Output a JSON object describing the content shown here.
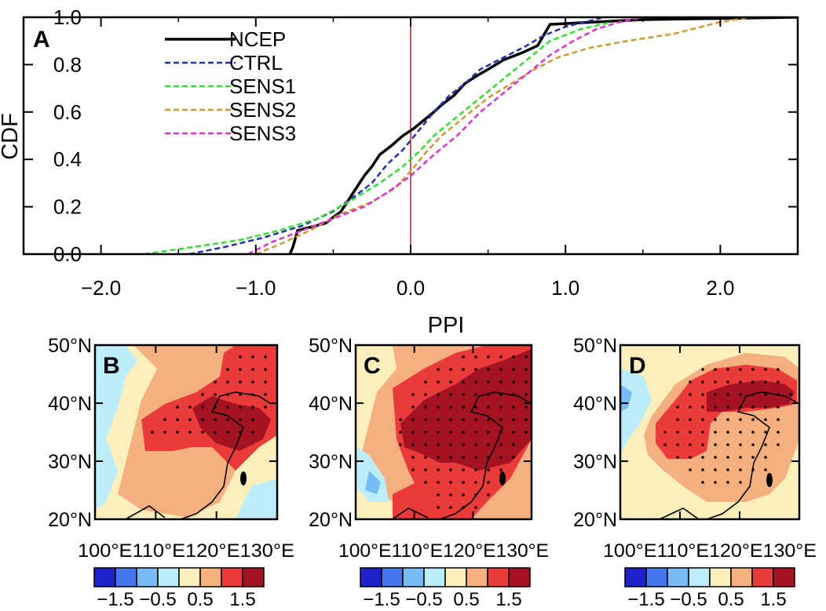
{
  "chart_data": [
    {
      "type": "line",
      "panel_label": "A",
      "xlabel": "PPI",
      "ylabel": "CDF",
      "xlim": [
        -2.5,
        2.5
      ],
      "ylim": [
        0.0,
        1.0
      ],
      "xticks": [
        -2.0,
        -1.0,
        0.0,
        1.0,
        2.0
      ],
      "xtick_labels": [
        "−2.0",
        "−1.0",
        "0.0",
        "1.0",
        "2.0"
      ],
      "yticks": [
        0.0,
        0.2,
        0.4,
        0.6,
        0.8,
        1.0
      ],
      "ytick_labels": [
        "0.0",
        "0.2",
        "0.4",
        "0.6",
        "0.8",
        "1.0"
      ],
      "reference_line": {
        "x": 0.0,
        "color": "#b22222"
      },
      "legend_position": "top-left",
      "series": [
        {
          "name": "NCEP",
          "color": "#000000",
          "dashed": false,
          "x": [
            -0.78,
            -0.76,
            -0.73,
            -0.55,
            -0.45,
            -0.38,
            -0.3,
            -0.25,
            -0.2,
            -0.12,
            -0.05,
            0.02,
            0.15,
            0.2,
            0.28,
            0.35,
            0.42,
            0.5,
            0.55,
            0.6,
            0.72,
            0.82,
            0.9,
            1.2,
            1.5,
            2.0,
            2.5
          ],
          "y": [
            0.0,
            0.03,
            0.1,
            0.13,
            0.18,
            0.25,
            0.33,
            0.37,
            0.42,
            0.46,
            0.5,
            0.53,
            0.6,
            0.63,
            0.67,
            0.72,
            0.75,
            0.78,
            0.8,
            0.82,
            0.85,
            0.88,
            0.97,
            0.98,
            0.99,
            0.995,
            1.0
          ]
        },
        {
          "name": "CTRL",
          "color": "#2233aa",
          "dashed": true,
          "x": [
            -1.43,
            -1.2,
            -0.95,
            -0.7,
            -0.5,
            -0.35,
            -0.25,
            -0.15,
            -0.05,
            0.05,
            0.15,
            0.25,
            0.35,
            0.45,
            0.6,
            0.75,
            0.85,
            1.0,
            1.25
          ],
          "y": [
            0.0,
            0.03,
            0.07,
            0.12,
            0.18,
            0.25,
            0.3,
            0.38,
            0.44,
            0.52,
            0.6,
            0.67,
            0.72,
            0.78,
            0.83,
            0.88,
            0.92,
            0.96,
            1.0
          ]
        },
        {
          "name": "SENS1",
          "color": "#33dd33",
          "dashed": true,
          "x": [
            -1.72,
            -1.4,
            -1.1,
            -0.85,
            -0.6,
            -0.4,
            -0.2,
            -0.05,
            0.05,
            0.15,
            0.3,
            0.45,
            0.6,
            0.75,
            0.9,
            1.1,
            1.3
          ],
          "y": [
            0.0,
            0.03,
            0.06,
            0.1,
            0.15,
            0.22,
            0.3,
            0.37,
            0.43,
            0.5,
            0.58,
            0.66,
            0.74,
            0.82,
            0.9,
            0.95,
            0.98
          ]
        },
        {
          "name": "SENS2",
          "color": "#cc9933",
          "dashed": true,
          "x": [
            -1.0,
            -0.85,
            -0.65,
            -0.45,
            -0.25,
            -0.1,
            0.0,
            0.1,
            0.2,
            0.35,
            0.5,
            0.65,
            0.8,
            0.95,
            1.15,
            1.4,
            1.7,
            2.0,
            2.2
          ],
          "y": [
            0.0,
            0.04,
            0.1,
            0.17,
            0.22,
            0.28,
            0.35,
            0.43,
            0.5,
            0.58,
            0.66,
            0.72,
            0.78,
            0.83,
            0.87,
            0.9,
            0.93,
            0.98,
            1.0
          ]
        },
        {
          "name": "SENS3",
          "color": "#dd33cc",
          "dashed": true,
          "x": [
            -1.05,
            -0.9,
            -0.7,
            -0.5,
            -0.3,
            -0.15,
            0.0,
            0.15,
            0.3,
            0.45,
            0.6,
            0.75,
            0.9,
            1.05,
            1.2,
            1.35,
            1.5
          ],
          "y": [
            0.0,
            0.05,
            0.1,
            0.15,
            0.2,
            0.26,
            0.33,
            0.42,
            0.5,
            0.6,
            0.68,
            0.76,
            0.84,
            0.9,
            0.95,
            0.98,
            1.0
          ]
        }
      ]
    },
    {
      "type": "heatmap",
      "panel_label": "B",
      "x_tick_labels": [
        "100°E",
        "110°E",
        "120°E",
        "130°E"
      ],
      "y_tick_labels": [
        "20°N",
        "30°N",
        "40°N",
        "50°N"
      ],
      "colorbar_labels": [
        "−1.5",
        "−0.5",
        "0.5",
        "1.5"
      ],
      "colors": [
        "#2020cc",
        "#4477ee",
        "#77bbf5",
        "#bbeefa",
        "#fbefbb",
        "#f6b07f",
        "#ea3a3a",
        "#a51222"
      ]
    },
    {
      "type": "heatmap",
      "panel_label": "C",
      "x_tick_labels": [
        "100°E",
        "110°E",
        "120°E",
        "130°E"
      ],
      "y_tick_labels": [
        "20°N",
        "30°N",
        "40°N",
        "50°N"
      ],
      "colorbar_labels": [
        "−1.5",
        "−0.5",
        "0.5",
        "1.5"
      ],
      "colors": [
        "#2020cc",
        "#4477ee",
        "#77bbf5",
        "#bbeefa",
        "#fbefbb",
        "#f6b07f",
        "#ea3a3a",
        "#a51222"
      ]
    },
    {
      "type": "heatmap",
      "panel_label": "D",
      "x_tick_labels": [
        "100°E",
        "110°E",
        "120°E",
        "130°E"
      ],
      "y_tick_labels": [
        "20°N",
        "30°N",
        "40°N",
        "50°N"
      ],
      "colorbar_labels": [
        "−1.5",
        "−0.5",
        "0.5",
        "1.5"
      ],
      "colors": [
        "#2020cc",
        "#4477ee",
        "#77bbf5",
        "#bbeefa",
        "#fbefbb",
        "#f6b07f",
        "#ea3a3a",
        "#a51222"
      ]
    }
  ]
}
